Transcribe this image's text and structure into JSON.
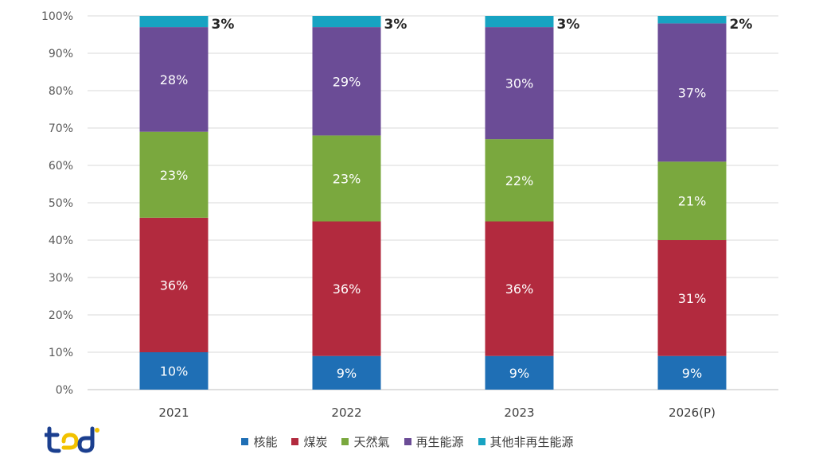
{
  "chart_data": {
    "type": "bar",
    "stacked": true,
    "title": "",
    "xlabel": "",
    "ylabel": "",
    "ylim": [
      0,
      100
    ],
    "yticks": [
      "0%",
      "10%",
      "20%",
      "30%",
      "40%",
      "50%",
      "60%",
      "70%",
      "80%",
      "90%",
      "100%"
    ],
    "categories": [
      "2021",
      "2022",
      "2023",
      "2026(P)"
    ],
    "series": [
      {
        "name": "核能",
        "color": "#1f6fb5",
        "values": [
          10,
          9,
          9,
          9
        ],
        "labels": [
          "10%",
          "9%",
          "9%",
          "9%"
        ]
      },
      {
        "name": "煤炭",
        "color": "#b22a3e",
        "values": [
          36,
          36,
          36,
          31
        ],
        "labels": [
          "36%",
          "36%",
          "36%",
          "31%"
        ]
      },
      {
        "name": "天然氣",
        "color": "#7aa83e",
        "values": [
          23,
          23,
          22,
          21
        ],
        "labels": [
          "23%",
          "23%",
          "22%",
          "21%"
        ]
      },
      {
        "name": "再生能源",
        "color": "#6b4c96",
        "values": [
          28,
          29,
          30,
          37
        ],
        "labels": [
          "28%",
          "29%",
          "30%",
          "37%"
        ]
      },
      {
        "name": "其他非再生能源",
        "color": "#17a3c2",
        "values": [
          3,
          3,
          3,
          2
        ],
        "labels": [
          "3%",
          "3%",
          "3%",
          "2%"
        ]
      }
    ],
    "grid": true,
    "legend": "bottom"
  },
  "logo": {
    "name": "company-logo"
  }
}
